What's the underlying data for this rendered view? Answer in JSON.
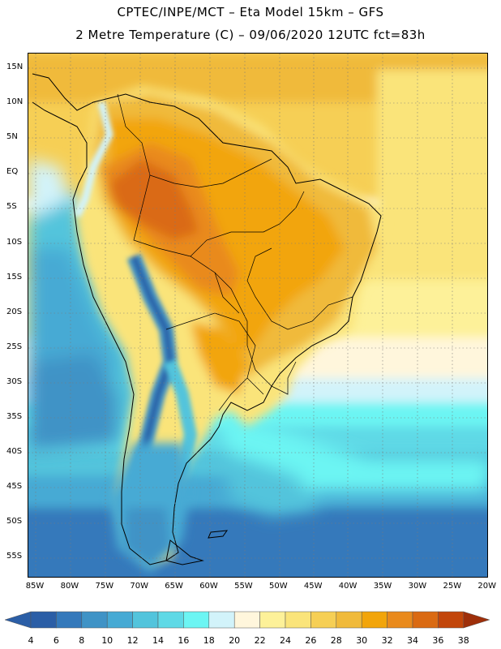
{
  "header": {
    "line1": "CPTEC/INPE/MCT –  Eta Model 15km – GFS",
    "line2": "2 Metre Temperature (C) – 09/06/2020 12UTC fct=83h"
  },
  "lat_labels": [
    "15N",
    "10N",
    "5N",
    "EQ",
    "5S",
    "10S",
    "15S",
    "20S",
    "25S",
    "30S",
    "35S",
    "40S",
    "45S",
    "50S",
    "55S"
  ],
  "lon_labels": [
    "85W",
    "80W",
    "75W",
    "70W",
    "65W",
    "60W",
    "55W",
    "50W",
    "45W",
    "40W",
    "35W",
    "30W",
    "25W",
    "20W"
  ],
  "colorbar": {
    "labels": [
      "4",
      "6",
      "8",
      "10",
      "12",
      "14",
      "16",
      "18",
      "20",
      "22",
      "24",
      "26",
      "28",
      "30",
      "32",
      "34",
      "36",
      "38"
    ],
    "colors": [
      "#2b5ea6",
      "#3479bb",
      "#3f93c6",
      "#46aad4",
      "#52c4dc",
      "#5fd9e6",
      "#6cf5f3",
      "#d2f3fa",
      "#fff6dc",
      "#fdf199",
      "#fae47a",
      "#f6cf55",
      "#f0ba3a",
      "#f2a50a",
      "#e98a1c",
      "#da6a12",
      "#c2460a",
      "#9e2f0a"
    ]
  }
}
